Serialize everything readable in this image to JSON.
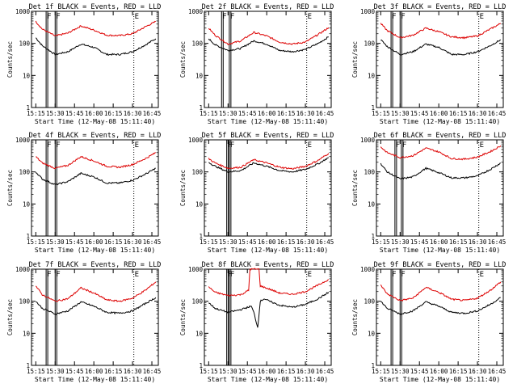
{
  "window": {
    "background": "#ffffff"
  },
  "colors": {
    "events": "#000000",
    "lld": "#dd0000",
    "axis": "#000000"
  },
  "chart_data": [
    {
      "type": "line",
      "title": "Det 1f BLACK = Events, RED = LLD",
      "xlabel": "Start Time (12-May-08 15:11:40)",
      "ylabel": "Counts/sec",
      "yscale": "log",
      "ylim": [
        1,
        1000
      ],
      "yticks": [
        "1",
        "10",
        "100",
        "1000"
      ],
      "xticks": [
        "15:15",
        "15:30",
        "15:45",
        "16:00",
        "16:15",
        "16:30",
        "16:45"
      ],
      "markers": [
        {
          "label": "F",
          "time": "15:23"
        },
        {
          "label": "F",
          "time": "15:30"
        },
        {
          "label": "E",
          "time": "16:31"
        }
      ],
      "series": [
        {
          "name": "Events",
          "color": "#000000",
          "x": [
            "15:15",
            "15:20",
            "15:30",
            "15:40",
            "15:50",
            "16:00",
            "16:10",
            "16:20",
            "16:30",
            "16:40",
            "16:48"
          ],
          "values": [
            150,
            85,
            45,
            55,
            95,
            75,
            45,
            45,
            55,
            90,
            140
          ]
        },
        {
          "name": "LLD",
          "color": "#dd0000",
          "x": [
            "15:15",
            "15:20",
            "15:30",
            "15:40",
            "15:50",
            "16:00",
            "16:10",
            "16:20",
            "16:30",
            "16:40",
            "16:48"
          ],
          "values": [
            480,
            280,
            170,
            210,
            350,
            260,
            180,
            175,
            200,
            330,
            480
          ]
        }
      ]
    },
    {
      "type": "line",
      "title": "Det 2f BLACK = Events, RED = LLD",
      "xlabel": "Start Time (12-May-08 15:11:40)",
      "ylabel": "Counts/sec",
      "yscale": "log",
      "ylim": [
        1,
        1000
      ],
      "yticks": [
        "1",
        "10",
        "100",
        "1000"
      ],
      "xticks": [
        "15:15",
        "15:30",
        "15:45",
        "16:00",
        "16:15",
        "16:30",
        "16:45"
      ],
      "markers": [
        {
          "label": "F",
          "time": "15:25"
        },
        {
          "label": "F",
          "time": "15:31"
        },
        {
          "label": "E",
          "time": "16:31"
        }
      ],
      "series": [
        {
          "name": "Events",
          "color": "#000000",
          "x": [
            "15:15",
            "15:20",
            "15:30",
            "15:40",
            "15:50",
            "16:00",
            "16:10",
            "16:20",
            "16:30",
            "16:40",
            "16:48"
          ],
          "values": [
            140,
            90,
            60,
            70,
            120,
            95,
            60,
            55,
            65,
            100,
            160
          ]
        },
        {
          "name": "LLD",
          "color": "#dd0000",
          "x": [
            "15:15",
            "15:20",
            "15:30",
            "15:40",
            "15:50",
            "16:00",
            "16:10",
            "16:20",
            "16:30",
            "16:40",
            "16:48"
          ],
          "values": [
            300,
            180,
            95,
            120,
            220,
            170,
            110,
            95,
            110,
            190,
            310
          ]
        }
      ]
    },
    {
      "type": "line",
      "title": "Det 3f BLACK = Events, RED = LLD",
      "xlabel": "Start Time (12-May-08 15:11:40)",
      "ylabel": "Counts/sec",
      "yscale": "log",
      "ylim": [
        1,
        1000
      ],
      "yticks": [
        "1",
        "10",
        "100",
        "1000"
      ],
      "xticks": [
        "15:15",
        "15:30",
        "15:45",
        "16:00",
        "16:15",
        "16:30",
        "16:45"
      ],
      "markers": [
        {
          "label": "F",
          "time": "15:23"
        },
        {
          "label": "F",
          "time": "15:30"
        },
        {
          "label": "E",
          "time": "16:31"
        }
      ],
      "series": [
        {
          "name": "Events",
          "color": "#000000",
          "x": [
            "15:15",
            "15:20",
            "15:30",
            "15:40",
            "15:50",
            "16:00",
            "16:10",
            "16:20",
            "16:30",
            "16:40",
            "16:48"
          ],
          "values": [
            130,
            80,
            45,
            55,
            95,
            75,
            45,
            45,
            55,
            85,
            130
          ]
        },
        {
          "name": "LLD",
          "color": "#dd0000",
          "x": [
            "15:15",
            "15:20",
            "15:30",
            "15:40",
            "15:50",
            "16:00",
            "16:10",
            "16:20",
            "16:30",
            "16:40",
            "16:48"
          ],
          "values": [
            420,
            250,
            150,
            180,
            300,
            230,
            160,
            150,
            170,
            280,
            420
          ]
        }
      ]
    },
    {
      "type": "line",
      "title": "Det 4f BLACK = Events, RED = LLD",
      "xlabel": "Start Time (12-May-08 15:11:40)",
      "ylabel": "Counts/sec",
      "yscale": "log",
      "ylim": [
        1,
        1000
      ],
      "yticks": [
        "1",
        "10",
        "100",
        "1000"
      ],
      "xticks": [
        "15:15",
        "15:30",
        "15:45",
        "16:00",
        "16:15",
        "16:30",
        "16:45"
      ],
      "markers": [
        {
          "label": "F",
          "time": "15:23"
        },
        {
          "label": "F",
          "time": "15:30"
        },
        {
          "label": "E",
          "time": "16:31"
        }
      ],
      "series": [
        {
          "name": "Events",
          "color": "#000000",
          "x": [
            "15:15",
            "15:20",
            "15:30",
            "15:40",
            "15:50",
            "16:00",
            "16:10",
            "16:20",
            "16:30",
            "16:40",
            "16:48"
          ],
          "values": [
            100,
            60,
            40,
            50,
            90,
            70,
            45,
            45,
            55,
            85,
            130
          ]
        },
        {
          "name": "LLD",
          "color": "#dd0000",
          "x": [
            "15:15",
            "15:20",
            "15:30",
            "15:40",
            "15:50",
            "16:00",
            "16:10",
            "16:20",
            "16:30",
            "16:40",
            "16:48"
          ],
          "values": [
            300,
            190,
            130,
            160,
            300,
            220,
            150,
            140,
            170,
            260,
            400
          ]
        }
      ]
    },
    {
      "type": "line",
      "title": "Det 5f BLACK = Events, RED = LLD",
      "xlabel": "Start Time (12-May-08 15:11:40)",
      "ylabel": "Counts/sec",
      "yscale": "log",
      "ylim": [
        1,
        1000
      ],
      "yticks": [
        "1",
        "10",
        "100",
        "1000"
      ],
      "xticks": [
        "15:15",
        "15:30",
        "15:45",
        "16:00",
        "16:15",
        "16:30",
        "16:45"
      ],
      "markers": [
        {
          "label": "F",
          "time": "15:29"
        },
        {
          "label": "F",
          "time": "15:31"
        },
        {
          "label": "E",
          "time": "16:31"
        }
      ],
      "series": [
        {
          "name": "Events",
          "color": "#000000",
          "x": [
            "15:15",
            "15:20",
            "15:30",
            "15:40",
            "15:50",
            "16:00",
            "16:10",
            "16:20",
            "16:30",
            "16:40",
            "16:48"
          ],
          "values": [
            200,
            150,
            100,
            110,
            190,
            150,
            110,
            100,
            120,
            180,
            280
          ]
        },
        {
          "name": "LLD",
          "color": "#dd0000",
          "x": [
            "15:15",
            "15:20",
            "15:30",
            "15:40",
            "15:50",
            "16:00",
            "16:10",
            "16:20",
            "16:30",
            "16:40",
            "16:48"
          ],
          "values": [
            260,
            190,
            130,
            140,
            240,
            190,
            140,
            125,
            150,
            230,
            380
          ]
        }
      ]
    },
    {
      "type": "line",
      "title": "Det 6f BLACK = Events, RED = LLD",
      "xlabel": "Start Time (12-May-08 15:11:40)",
      "ylabel": "Counts/sec",
      "yscale": "log",
      "ylim": [
        1,
        1000
      ],
      "yticks": [
        "1",
        "10",
        "100",
        "1000"
      ],
      "xticks": [
        "15:15",
        "15:30",
        "15:45",
        "16:00",
        "16:15",
        "16:30",
        "16:45"
      ],
      "markers": [
        {
          "label": "F",
          "time": "15:26"
        },
        {
          "label": "F",
          "time": "15:31"
        },
        {
          "label": "E",
          "time": "16:31"
        }
      ],
      "series": [
        {
          "name": "Events",
          "color": "#000000",
          "x": [
            "15:15",
            "15:20",
            "15:30",
            "15:40",
            "15:50",
            "16:00",
            "16:10",
            "16:20",
            "16:30",
            "16:40",
            "16:48"
          ],
          "values": [
            180,
            100,
            60,
            70,
            130,
            95,
            65,
            65,
            75,
            120,
            190
          ]
        },
        {
          "name": "LLD",
          "color": "#dd0000",
          "x": [
            "15:15",
            "15:20",
            "15:30",
            "15:40",
            "15:50",
            "16:00",
            "16:10",
            "16:20",
            "16:30",
            "16:40",
            "16:48"
          ],
          "values": [
            600,
            400,
            280,
            320,
            550,
            420,
            260,
            250,
            290,
            430,
            650
          ]
        }
      ]
    },
    {
      "type": "line",
      "title": "Det 7f BLACK = Events, RED = LLD",
      "xlabel": "Start Time (12-May-08 15:11:40)",
      "ylabel": "Counts/sec",
      "yscale": "log",
      "ylim": [
        1,
        1000
      ],
      "yticks": [
        "1",
        "10",
        "100",
        "1000"
      ],
      "xticks": [
        "15:15",
        "15:30",
        "15:45",
        "16:00",
        "16:15",
        "16:30",
        "16:45"
      ],
      "markers": [
        {
          "label": "F",
          "time": "15:23"
        },
        {
          "label": "F",
          "time": "15:30"
        },
        {
          "label": "E",
          "time": "16:31"
        }
      ],
      "series": [
        {
          "name": "Events",
          "color": "#000000",
          "x": [
            "15:15",
            "15:20",
            "15:30",
            "15:40",
            "15:50",
            "16:00",
            "16:10",
            "16:20",
            "16:30",
            "16:40",
            "16:48"
          ],
          "values": [
            100,
            60,
            40,
            50,
            95,
            70,
            45,
            42,
            50,
            85,
            130
          ]
        },
        {
          "name": "LLD",
          "color": "#dd0000",
          "x": [
            "15:15",
            "15:20",
            "15:30",
            "15:40",
            "15:50",
            "16:00",
            "16:10",
            "16:20",
            "16:30",
            "16:40",
            "16:48"
          ],
          "values": [
            300,
            160,
            100,
            120,
            260,
            180,
            110,
            100,
            125,
            220,
            400
          ]
        }
      ]
    },
    {
      "type": "line",
      "title": "Det 8f BLACK = Events, RED = LLD",
      "xlabel": "Start Time (12-May-08 15:11:40)",
      "ylabel": "Counts/sec",
      "yscale": "log",
      "ylim": [
        1,
        1000
      ],
      "yticks": [
        "1",
        "10",
        "100",
        "1000"
      ],
      "xticks": [
        "15:15",
        "15:30",
        "15:45",
        "16:00",
        "16:15",
        "16:30",
        "16:45"
      ],
      "markers": [
        {
          "label": "F",
          "time": "15:29"
        },
        {
          "label": "F",
          "time": "15:31"
        },
        {
          "label": "E",
          "time": "16:31"
        }
      ],
      "series": [
        {
          "name": "Events",
          "color": "#000000",
          "x": [
            "15:15",
            "15:20",
            "15:30",
            "15:40",
            "15:48",
            "15:50",
            "15:53",
            "15:55",
            "15:58",
            "16:02",
            "16:10",
            "16:20",
            "16:30",
            "16:40",
            "16:48"
          ],
          "values": [
            90,
            60,
            45,
            55,
            70,
            45,
            15,
            100,
            120,
            100,
            75,
            65,
            80,
            120,
            190
          ]
        },
        {
          "name": "LLD",
          "color": "#dd0000",
          "x": [
            "15:15",
            "15:20",
            "15:30",
            "15:40",
            "15:46",
            "15:47",
            "15:54",
            "15:55",
            "16:02",
            "16:10",
            "16:20",
            "16:30",
            "16:40",
            "16:48"
          ],
          "values": [
            280,
            190,
            150,
            160,
            220,
            1000,
            1000,
            300,
            240,
            180,
            165,
            200,
            320,
            480
          ]
        }
      ]
    },
    {
      "type": "line",
      "title": "Det 9f BLACK = Events, RED = LLD",
      "xlabel": "Start Time (12-May-08 15:11:40)",
      "ylabel": "Counts/sec",
      "yscale": "log",
      "ylim": [
        1,
        1000
      ],
      "yticks": [
        "1",
        "10",
        "100",
        "1000"
      ],
      "xticks": [
        "15:15",
        "15:30",
        "15:45",
        "16:00",
        "16:15",
        "16:30",
        "16:45"
      ],
      "markers": [
        {
          "label": "F",
          "time": "15:23"
        },
        {
          "label": "F",
          "time": "15:30"
        },
        {
          "label": "E",
          "time": "16:31"
        }
      ],
      "series": [
        {
          "name": "Events",
          "color": "#000000",
          "x": [
            "15:15",
            "15:20",
            "15:30",
            "15:40",
            "15:50",
            "16:00",
            "16:10",
            "16:20",
            "16:30",
            "16:40",
            "16:48"
          ],
          "values": [
            100,
            60,
            40,
            50,
            95,
            70,
            45,
            42,
            50,
            80,
            130
          ]
        },
        {
          "name": "LLD",
          "color": "#dd0000",
          "x": [
            "15:15",
            "15:20",
            "15:30",
            "15:40",
            "15:50",
            "16:00",
            "16:10",
            "16:20",
            "16:30",
            "16:40",
            "16:48"
          ],
          "values": [
            320,
            170,
            105,
            125,
            270,
            190,
            115,
            105,
            125,
            220,
            400
          ]
        }
      ]
    }
  ]
}
